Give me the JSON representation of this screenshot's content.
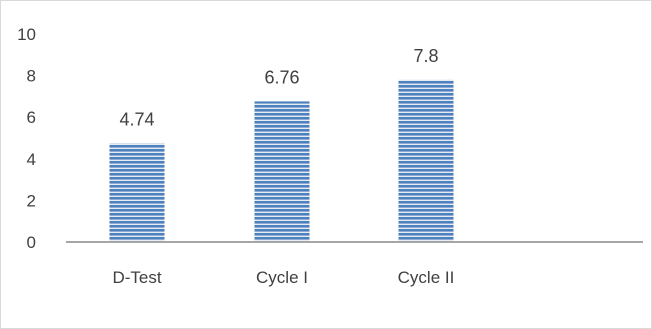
{
  "chart_data": {
    "type": "bar",
    "categories": [
      "D-Test",
      "Cycle I",
      "Cycle II"
    ],
    "values": [
      4.74,
      6.76,
      7.8
    ],
    "data_labels": [
      "4.74",
      "6.76",
      "7.8"
    ],
    "y_ticks": [
      "0",
      "2",
      "4",
      "6",
      "8",
      "10"
    ],
    "ylim": [
      0,
      10
    ],
    "grid": false,
    "legend": "none",
    "title": "",
    "xlabel": "",
    "ylabel": "",
    "bar_color": "#4f81bd",
    "bar_stripe_color": "#ffffff",
    "axis_color": "#a6a6a6"
  }
}
